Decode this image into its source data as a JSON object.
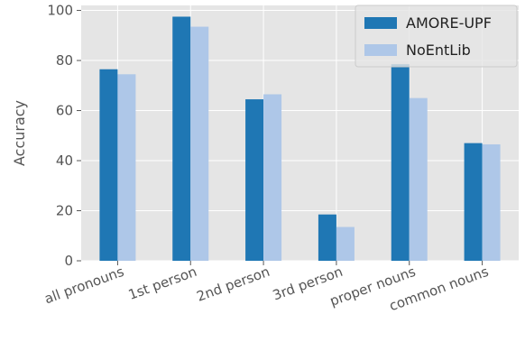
{
  "chart_data": {
    "type": "bar",
    "categories": [
      "all pronouns",
      "1st person",
      "2nd person",
      "3rd person",
      "proper nouns",
      "common nouns"
    ],
    "series": [
      {
        "name": "AMORE-UPF",
        "values": [
          76.5,
          97.5,
          64.5,
          18.5,
          78.5,
          47
        ],
        "color": "#1f77b4"
      },
      {
        "name": "NoEntLib",
        "values": [
          74.5,
          93.5,
          66.5,
          13.5,
          65,
          46.5
        ],
        "color": "#aec7e8"
      }
    ],
    "title": "",
    "xlabel": "",
    "ylabel": "Accuracy",
    "ylim": [
      0,
      102
    ],
    "yticks": [
      0,
      20,
      40,
      60,
      80,
      100
    ],
    "grid": true,
    "legend": "top-right",
    "background": "#e5e5e5"
  }
}
